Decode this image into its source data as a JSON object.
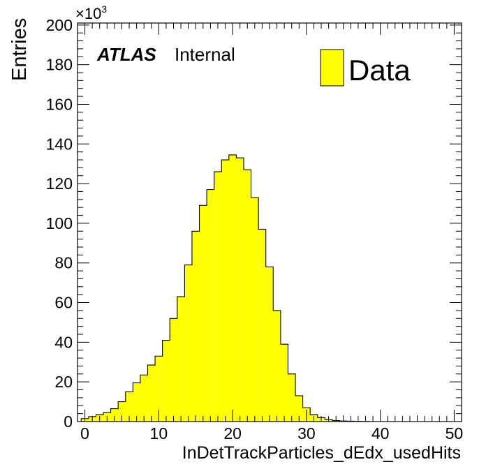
{
  "chart_data": {
    "type": "bar",
    "style": "histogram",
    "ylabel": "Entries",
    "xlabel": "InDetTrackParticles_dEdx_usedHits",
    "y_multiplier_label": "×10",
    "y_multiplier_exp": "3",
    "xlim": [
      -1,
      51
    ],
    "ylim": [
      0,
      201
    ],
    "x_ticks": [
      0,
      10,
      20,
      30,
      40,
      50
    ],
    "x_tick_labels": [
      "0",
      "10",
      "20",
      "30",
      "40",
      "50"
    ],
    "y_ticks": [
      0,
      20,
      40,
      60,
      80,
      100,
      120,
      140,
      160,
      180,
      200
    ],
    "y_tick_labels": [
      "0",
      "20",
      "40",
      "60",
      "80",
      "100",
      "120",
      "140",
      "160",
      "180",
      "200"
    ],
    "bin_edges": [
      -0.5,
      0.5,
      1.5,
      2.5,
      3.5,
      4.5,
      5.5,
      6.5,
      7.5,
      8.5,
      9.5,
      10.5,
      11.5,
      12.5,
      13.5,
      14.5,
      15.5,
      16.5,
      17.5,
      18.5,
      19.5,
      20.5,
      21.5,
      22.5,
      23.5,
      24.5,
      25.5,
      26.5,
      27.5,
      28.5,
      29.5,
      30.5,
      31.5,
      32.5,
      33.5,
      34.5,
      35.5,
      36.5,
      37.5,
      38.5,
      39.5,
      40.5,
      41.5,
      42.5,
      43.5,
      44.5,
      45.5,
      46.5,
      47.5,
      48.5,
      49.5,
      50.5
    ],
    "values": [
      1.5,
      2.5,
      3.5,
      4.5,
      6.5,
      10,
      15,
      19.5,
      23.5,
      28.5,
      33,
      41,
      52,
      63,
      79,
      96,
      109,
      117,
      126,
      132,
      134.5,
      133,
      127,
      113,
      97,
      78,
      56,
      39,
      24,
      13,
      7,
      3.5,
      2,
      1,
      0.5,
      0.3,
      0.2,
      0.1,
      0.05,
      0,
      0,
      0,
      0,
      0,
      0,
      0,
      0,
      0,
      0,
      0,
      0
    ],
    "fill_color": "#ffff00",
    "line_color": "#000000",
    "legend": [
      {
        "name": "Data",
        "fill_color": "#ffff00"
      }
    ],
    "legend_position": "top-right",
    "grid": false
  },
  "annotations": {
    "atlas": "ATLAS",
    "internal": "Internal"
  }
}
